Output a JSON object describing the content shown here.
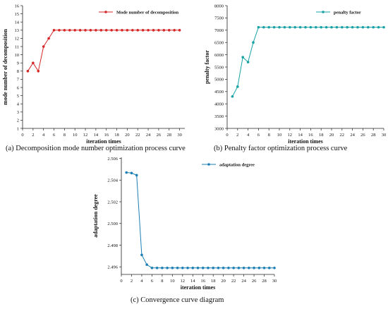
{
  "chart_data": [
    {
      "type": "line",
      "caption": "(a) Decomposition mode number optimization process curve",
      "xlabel": "iteration times",
      "ylabel": "mode number of decomposition",
      "xlim": [
        0,
        31
      ],
      "ylim": [
        1,
        16
      ],
      "xticks": [
        0,
        2,
        4,
        6,
        8,
        10,
        12,
        14,
        16,
        18,
        20,
        22,
        24,
        26,
        28,
        30
      ],
      "yticks": [
        1,
        2,
        3,
        4,
        5,
        6,
        7,
        8,
        9,
        10,
        11,
        12,
        13,
        14,
        15,
        16
      ],
      "legend_position": "top-right",
      "grid": false,
      "x": [
        1,
        2,
        3,
        4,
        5,
        6,
        7,
        8,
        9,
        10,
        11,
        12,
        13,
        14,
        15,
        16,
        17,
        18,
        19,
        20,
        21,
        22,
        23,
        24,
        25,
        26,
        27,
        28,
        29,
        30
      ],
      "series": [
        {
          "name": "Mode number of decomposition",
          "color": "#d62728",
          "values": [
            8,
            9,
            8,
            11,
            12,
            13,
            13,
            13,
            13,
            13,
            13,
            13,
            13,
            13,
            13,
            13,
            13,
            13,
            13,
            13,
            13,
            13,
            13,
            13,
            13,
            13,
            13,
            13,
            13,
            13
          ]
        }
      ]
    },
    {
      "type": "line",
      "caption": "(b) Penalty factor optimization process curve",
      "xlabel": "iteration times",
      "ylabel": "penalty factor",
      "xlim": [
        0,
        30
      ],
      "ylim": [
        3000,
        8000
      ],
      "xticks": [
        0,
        2,
        4,
        6,
        8,
        10,
        12,
        14,
        16,
        18,
        20,
        22,
        24,
        26,
        28,
        30
      ],
      "yticks": [
        3000,
        3500,
        4000,
        4500,
        5000,
        5500,
        6000,
        6500,
        7000,
        7500,
        8000
      ],
      "legend_position": "top-right",
      "grid": false,
      "x": [
        1,
        2,
        3,
        4,
        5,
        6,
        7,
        8,
        9,
        10,
        11,
        12,
        13,
        14,
        15,
        16,
        17,
        18,
        19,
        20,
        21,
        22,
        23,
        24,
        25,
        26,
        27,
        28,
        29,
        30
      ],
      "series": [
        {
          "name": "penalty factor",
          "color": "#17a2a6",
          "values": [
            4300,
            4700,
            5900,
            5700,
            6500,
            7120,
            7120,
            7120,
            7120,
            7120,
            7120,
            7120,
            7120,
            7120,
            7120,
            7120,
            7120,
            7120,
            7120,
            7120,
            7120,
            7120,
            7120,
            7120,
            7120,
            7120,
            7120,
            7120,
            7120,
            7120
          ]
        }
      ]
    },
    {
      "type": "line",
      "caption": "(c) Convergence curve diagram",
      "xlabel": "iteration times",
      "ylabel": "adaptation degree",
      "xlim": [
        0,
        30
      ],
      "ylim": [
        2.4953,
        2.5061
      ],
      "xticks": [
        0,
        2,
        4,
        6,
        8,
        10,
        12,
        14,
        16,
        18,
        20,
        22,
        24,
        26,
        28,
        30
      ],
      "yticks": [
        2.496,
        2.498,
        2.5,
        2.502,
        2.504,
        2.506
      ],
      "legend_position": "top-right",
      "grid": false,
      "x": [
        1,
        2,
        3,
        4,
        5,
        6,
        7,
        8,
        9,
        10,
        11,
        12,
        13,
        14,
        15,
        16,
        17,
        18,
        19,
        20,
        21,
        22,
        23,
        24,
        25,
        26,
        27,
        28,
        29,
        30
      ],
      "series": [
        {
          "name": "adaptation degree",
          "color": "#1b7fb5",
          "values": [
            2.5047,
            2.50465,
            2.50445,
            2.4971,
            2.4962,
            2.4959,
            2.4959,
            2.4959,
            2.4959,
            2.4959,
            2.4959,
            2.4959,
            2.4959,
            2.4959,
            2.4959,
            2.4959,
            2.4959,
            2.4959,
            2.4959,
            2.4959,
            2.4959,
            2.4959,
            2.4959,
            2.4959,
            2.4959,
            2.4959,
            2.4959,
            2.4959,
            2.4959,
            2.4959
          ]
        }
      ]
    }
  ]
}
